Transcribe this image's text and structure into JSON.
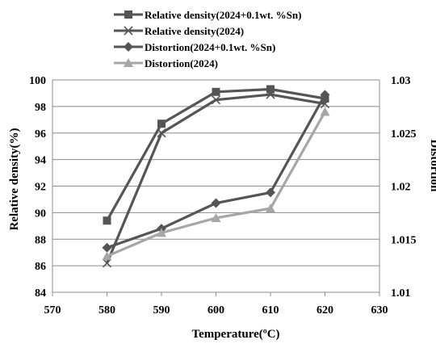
{
  "chart_data": {
    "type": "line",
    "title": "",
    "xlabel": "Temperature(ºC)",
    "ylabel": "Relative density(%)",
    "y2label": "Distortion",
    "xlim": [
      570,
      630
    ],
    "ylim": [
      84,
      100
    ],
    "y2lim": [
      1.01,
      1.03
    ],
    "x_ticks": [
      "570",
      "580",
      "590",
      "600",
      "610",
      "620",
      "630"
    ],
    "y_ticks": [
      "84",
      "86",
      "88",
      "90",
      "92",
      "94",
      "96",
      "98",
      "100"
    ],
    "y2_ticks": [
      "1.01",
      "1.015",
      "1.02",
      "1.025",
      "1.03"
    ],
    "grid": "horizontal",
    "legend_position": "top",
    "x": [
      580,
      590,
      600,
      610,
      620
    ],
    "series": [
      {
        "name": "Relative density(2024+0.1wt. %Sn)",
        "axis": "left",
        "marker": "square",
        "color": "#555555",
        "values": [
          89.4,
          96.7,
          99.1,
          99.3,
          98.6
        ]
      },
      {
        "name": "Relative density(2024)",
        "axis": "left",
        "marker": "x",
        "color": "#555555",
        "values": [
          86.2,
          96.0,
          98.5,
          98.9,
          98.2
        ]
      },
      {
        "name": "Distortion(2024+0.1wt. %Sn)",
        "axis": "right",
        "marker": "diamond",
        "color": "#555555",
        "values": [
          1.0142,
          1.016,
          1.0184,
          1.0194,
          1.0286
        ]
      },
      {
        "name": "Distortion(2024)",
        "axis": "right",
        "marker": "triangle",
        "color": "#a6a6a6",
        "values": [
          1.0134,
          1.0156,
          1.017,
          1.0179,
          1.027
        ]
      }
    ]
  }
}
